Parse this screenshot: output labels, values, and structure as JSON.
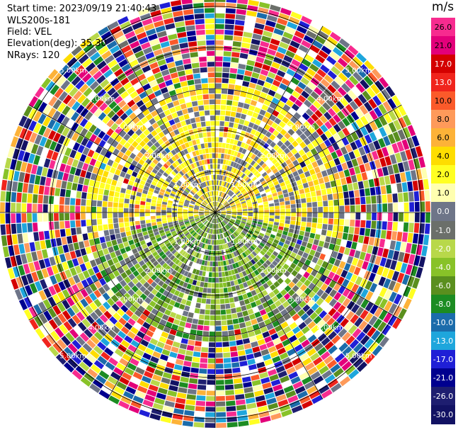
{
  "header": {
    "start_time": "Start time: 2023/09/19 21:40:43",
    "instrument": "WLS200s-181",
    "field": "Field: VEL",
    "elevation": "Elevation(deg): 35.30",
    "nrays": "NRays: 120"
  },
  "colorbar": {
    "unit": "m/s",
    "ticks": [
      "26.0",
      "21.0",
      "17.0",
      "13.0",
      "10.0",
      "8.0",
      "6.0",
      "4.0",
      "2.0",
      "1.0",
      "0.0",
      "-1.0",
      "-2.0",
      "-4.0",
      "-6.0",
      "-8.0",
      "-10.0",
      "-13.0",
      "-17.0",
      "-21.0",
      "-26.0",
      "-30.0"
    ],
    "colors": [
      "#f72b8f",
      "#e3007a",
      "#d40000",
      "#f0241c",
      "#fb5a2a",
      "#fe9a5a",
      "#fdb238",
      "#fedd00",
      "#ffff22",
      "#ffffb0",
      "#6e7588",
      "#6b6f6a",
      "#b8d84a",
      "#88c228",
      "#5a8f1e",
      "#1c8c22",
      "#1b6cab",
      "#1ea6dc",
      "#1f1fd6",
      "#00008f",
      "#1e1e70",
      "#121263"
    ]
  },
  "chart_data": {
    "type": "ppi",
    "field": "VEL",
    "units": "m/s",
    "n_rays": 120,
    "elevation_deg": 35.3,
    "range_rings": [
      {
        "label": "1.00km"
      },
      {
        "label": "2.00km"
      },
      {
        "label": "3.00km"
      },
      {
        "label": "4.00km"
      },
      {
        "label": "5.00km"
      }
    ],
    "color_scale_min": -30.0,
    "color_scale_max": 26.0
  }
}
